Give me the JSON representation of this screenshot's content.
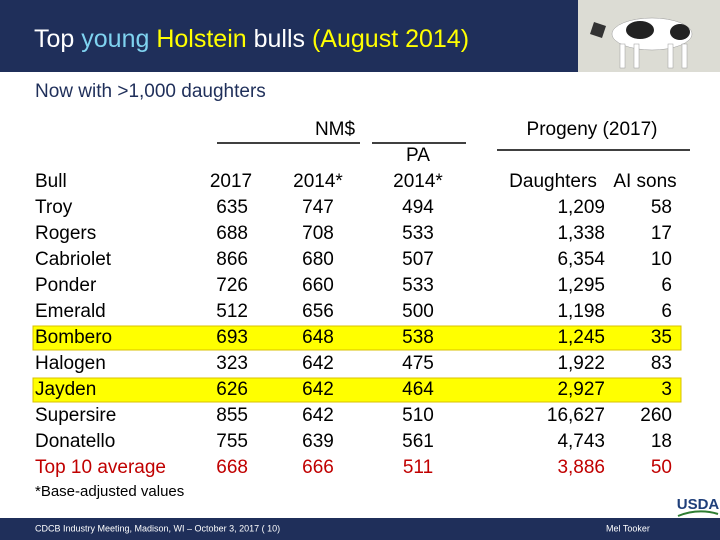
{
  "header": {
    "title": [
      {
        "text": "Top ",
        "color": "#ffffff"
      },
      {
        "text": "young",
        "color": "#7fd3f0"
      },
      {
        "text": " Holstein",
        "color": "#ffff00"
      },
      {
        "text": " bulls",
        "color": "#ffffff"
      },
      {
        "text": " (August 2014)",
        "color": "#ffff00"
      }
    ]
  },
  "subtitle": "Now with >1,000 daughters",
  "table": {
    "groups": {
      "nm": "NM$",
      "pa": "PA",
      "progeny": "Progeny (2017)"
    },
    "columns": [
      "Bull",
      "2017",
      "2014*",
      "2014*",
      "Daughters",
      "AI sons"
    ],
    "rows": [
      {
        "cells": [
          "Troy",
          "635",
          "747",
          "494",
          "1,209",
          "58"
        ],
        "highlighted": false
      },
      {
        "cells": [
          "Rogers",
          "688",
          "708",
          "533",
          "1,338",
          "17"
        ],
        "highlighted": false
      },
      {
        "cells": [
          "Cabriolet",
          "866",
          "680",
          "507",
          "6,354",
          "10"
        ],
        "highlighted": false
      },
      {
        "cells": [
          "Ponder",
          "726",
          "660",
          "533",
          "1,295",
          "6"
        ],
        "highlighted": false
      },
      {
        "cells": [
          "Emerald",
          "512",
          "656",
          "500",
          "1,198",
          "6"
        ],
        "highlighted": false
      },
      {
        "cells": [
          "Bombero",
          "693",
          "648",
          "538",
          "1,245",
          "35"
        ],
        "highlighted": true
      },
      {
        "cells": [
          "Halogen",
          "323",
          "642",
          "475",
          "1,922",
          "83"
        ],
        "highlighted": false
      },
      {
        "cells": [
          "Jayden",
          "626",
          "642",
          "464",
          "2,927",
          "3"
        ],
        "highlighted": true
      },
      {
        "cells": [
          "Supersire",
          "855",
          "642",
          "510",
          "16,627",
          "260"
        ],
        "highlighted": false
      },
      {
        "cells": [
          "Donatello",
          "755",
          "639",
          "561",
          "4,743",
          "18"
        ],
        "highlighted": false
      }
    ],
    "average": [
      "Top 10 average",
      "668",
      "666",
      "511",
      "3,886",
      "50"
    ]
  },
  "footnote": "*Base-adjusted values",
  "footer": {
    "left": "CDCB Industry Meeting, Madison, WI – October 3, 2017 ( 10)",
    "right": "Mel Tooker",
    "logo": "USDA"
  }
}
